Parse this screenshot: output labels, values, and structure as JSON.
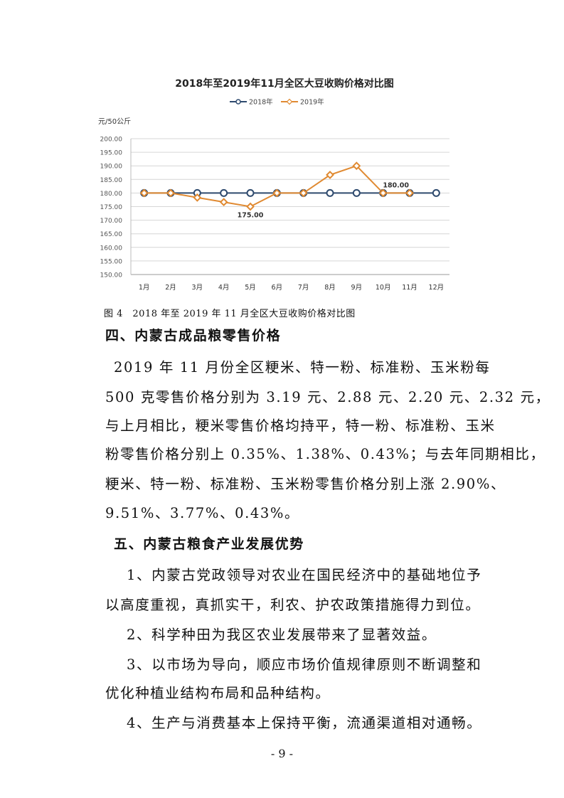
{
  "chart_data": {
    "type": "line",
    "title": "2018年至2019年11月全区大豆收购价格对比图",
    "ylabel": "元/50公斤",
    "ylim": [
      150,
      200
    ],
    "yticks": [
      "150.00",
      "155.00",
      "160.00",
      "165.00",
      "170.00",
      "175.00",
      "180.00",
      "185.00",
      "190.00",
      "195.00",
      "200.00"
    ],
    "categories": [
      "1月",
      "2月",
      "3月",
      "4月",
      "5月",
      "6月",
      "7月",
      "8月",
      "9月",
      "10月",
      "11月",
      "12月"
    ],
    "series": [
      {
        "name": "2018年",
        "color": "#2e4a6e",
        "marker": "circle",
        "values": [
          180,
          180,
          180,
          180,
          180,
          180,
          180,
          180,
          180,
          180,
          180,
          180
        ]
      },
      {
        "name": "2019年",
        "color": "#e08a32",
        "marker": "diamond",
        "values": [
          180,
          180,
          178.33,
          176.67,
          175,
          180,
          180,
          186.67,
          190,
          180,
          180,
          null
        ]
      }
    ],
    "annotations": [
      {
        "series": 1,
        "index": 4,
        "text": "175.00",
        "position": "below"
      },
      {
        "series": 1,
        "index": 9,
        "text": "180.00",
        "position": "above"
      }
    ],
    "grid": true,
    "legend": "top"
  },
  "caption": "图 4　2018 年至 2019 年 11 月全区大豆收购价格对比图",
  "heading4": "四、内蒙古成品粮零售价格",
  "para4": [
    "2019 年 11 月份全区粳米、特一粉、标准粉、玉米粉每",
    "500 克零售价格分别为 3.19 元、2.88 元、2.20 元、2.32 元，",
    "与上月相比，粳米零售价格均持平，特一粉、标准粉、玉米",
    "粉零售价格分别上 0.35%、1.38%、0.43%；与去年同期相比，",
    "粳米、特一粉、标准粉、玉米粉零售价格分别上涨 2.90%、",
    "9.51%、3.77%、0.43%。"
  ],
  "heading5": "五、内蒙古粮食产业发展优势",
  "para5": [
    "1、内蒙古党政领导对农业在国民经济中的基础地位予",
    "以高度重视，真抓实干，利农、护农政策措施得力到位。",
    "2、科学种田为我区农业发展带来了显著效益。",
    "3、以市场为导向，顺应市场价值规律原则不断调整和",
    "优化种植业结构布局和品种结构。",
    "4、生产与消费基本上保持平衡，流通渠道相对通畅。"
  ],
  "page_number": "- 9 -"
}
